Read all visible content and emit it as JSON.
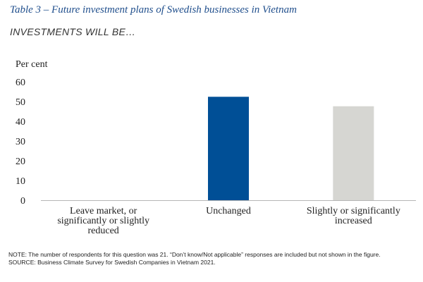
{
  "header": {
    "title": "Table 3 – Future investment plans of Swedish businesses in Vietnam",
    "subtitle": "INVESTMENTS WILL BE…"
  },
  "chart_data": {
    "type": "bar",
    "ylabel": "Per cent",
    "ylim": [
      0,
      60
    ],
    "yticks": [
      0,
      10,
      20,
      30,
      40,
      50,
      60
    ],
    "grid": false,
    "categories": [
      "Leave market, or significantly or slightly reduced",
      "Unchanged",
      "Slightly or significantly increased"
    ],
    "category_lines": [
      [
        "Leave market, or",
        "significantly or slightly",
        "reduced"
      ],
      [
        "Unchanged"
      ],
      [
        "Slightly or significantly",
        "increased"
      ]
    ],
    "values": [
      0,
      52.4,
      47.6
    ],
    "colors": [
      "#004f96",
      "#004f96",
      "#d6d6d2"
    ]
  },
  "footer": {
    "note": "NOTE: The number of respondents for this question was 21. “Don’t know/Not applicable” responses are included but not shown in the figure.",
    "source": "SOURCE: Business Climate Survey for Swedish Companies in Vietnam 2021."
  }
}
